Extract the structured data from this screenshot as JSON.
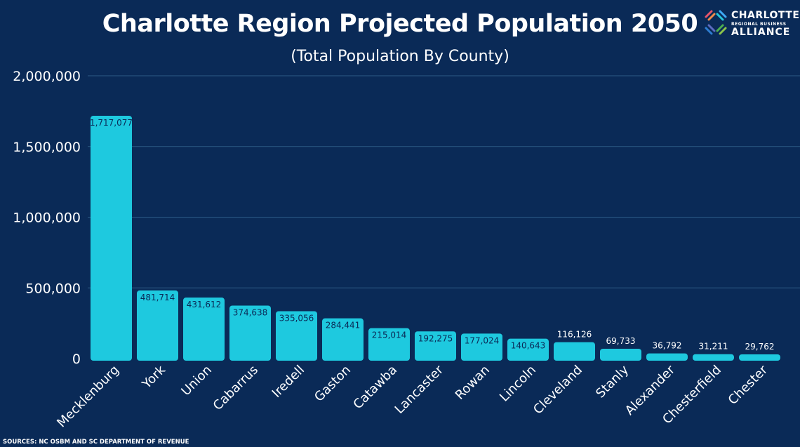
{
  "chart_data": {
    "type": "bar",
    "title": "Charlotte Region Projected Population 2050",
    "subtitle": "(Total Population By County)",
    "categories": [
      "Mecklenburg",
      "York",
      "Union",
      "Cabarrus",
      "Iredell",
      "Gaston",
      "Catawba",
      "Lancaster",
      "Rowan",
      "Lincoln",
      "Cleveland",
      "Stanly",
      "Alexander",
      "Chesterfield",
      "Chester"
    ],
    "values": [
      1717077,
      481714,
      431612,
      374638,
      335056,
      284441,
      215014,
      192275,
      177024,
      140643,
      116126,
      69733,
      36792,
      31211,
      29762
    ],
    "value_labels": [
      "1,717,077",
      "481,714",
      "431,612",
      "374,638",
      "335,056",
      "284,441",
      "215,014",
      "192,275",
      "177,024",
      "140,643",
      "116,126",
      "69,733",
      "36,792",
      "31,211",
      "29,762"
    ],
    "yticks": [
      0,
      500000,
      1000000,
      1500000,
      2000000
    ],
    "ytick_labels": [
      "0",
      "500,000",
      "1,000,000",
      "1,500,000",
      "2,000,000"
    ],
    "ylim": [
      0,
      2000000
    ],
    "grid": true,
    "xlabel": "",
    "ylabel": "",
    "colors": {
      "bar": "#1ec9df",
      "background": "#0a2a57",
      "grid": "#2c5a86",
      "label_inside": "#0a2a57"
    }
  },
  "logo": {
    "line1": "CHARLOTTE",
    "line2": "REGIONAL BUSINESS",
    "line3": "ALLIANCE"
  },
  "source": "SOURCES: NC OSBM AND SC  DEPARTMENT OF REVENUE"
}
